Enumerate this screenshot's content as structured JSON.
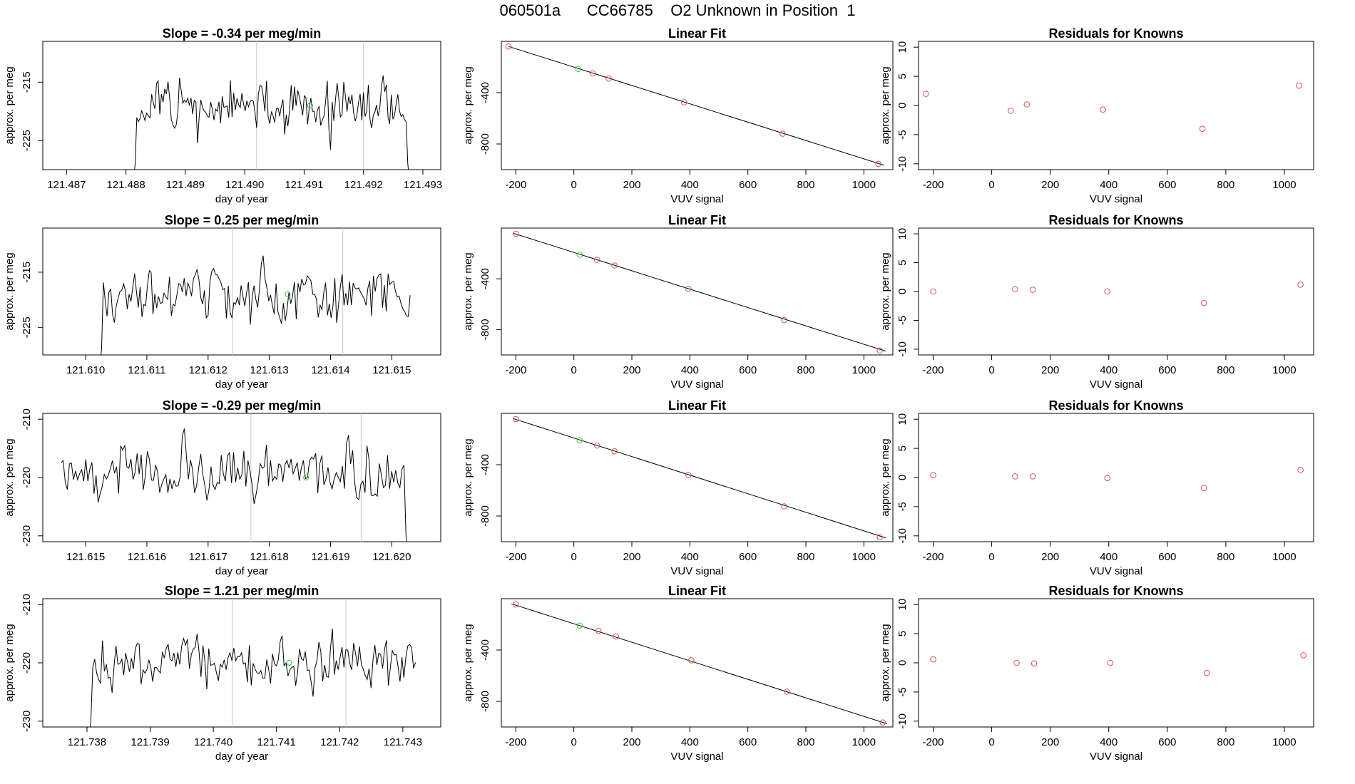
{
  "title": "060501a      CC66785    O2 Unknown in Position  1",
  "colors": {
    "known_point": "#d9534f",
    "unknown_point": "#2ecc40",
    "line": "#000000",
    "marker_line": "#c8c8c8"
  },
  "chart_data": [
    {
      "type": "line",
      "row": 1,
      "panel": "time-series",
      "title": "Slope =  -0.34  per meg/min",
      "xlabel": "day of year",
      "ylabel": "approx. per meg",
      "xlim": [
        121.4866,
        121.4933
      ],
      "ylim": [
        -230,
        -208
      ],
      "xticks": [
        "121.487",
        "121.488",
        "121.489",
        "121.490",
        "121.491",
        "121.492",
        "121.493"
      ],
      "xtick_values": [
        121.487,
        121.488,
        121.489,
        121.49,
        121.491,
        121.492,
        121.493
      ],
      "yticks": [
        "-215",
        "-225"
      ],
      "ytick_values": [
        -215,
        -225
      ],
      "xrange": [
        121.4881,
        121.4928
      ],
      "start_drop": true,
      "end_drop": true,
      "mean": -219.5,
      "sd": 2.2,
      "seed": 11,
      "vlines": [
        121.4902,
        121.492
      ],
      "unknown_point": {
        "x": 121.4911,
        "y": -219
      }
    },
    {
      "type": "scatter",
      "row": 1,
      "panel": "linear-fit",
      "title": "Linear Fit",
      "xlabel": "VUV signal",
      "ylabel": "approx. per meg",
      "xlim": [
        -250,
        1100
      ],
      "ylim": [
        -1000,
        0
      ],
      "xticks": [
        "-200",
        "0",
        "200",
        "400",
        "600",
        "800",
        "1000"
      ],
      "xtick_values": [
        -200,
        0,
        200,
        400,
        600,
        800,
        1000
      ],
      "yticks": [
        "-400",
        "-800"
      ],
      "ytick_values": [
        -400,
        -800
      ],
      "fit_line": {
        "x": [
          -225,
          1070
        ],
        "y": [
          -40,
          -966
        ]
      },
      "known_points": {
        "x": [
          -225,
          65,
          120,
          380,
          720,
          1050
        ],
        "y": [
          -40,
          -250,
          -290,
          -475,
          -720,
          -955
        ]
      },
      "unknown_point": {
        "x": 15,
        "y": -215
      }
    },
    {
      "type": "scatter",
      "row": 1,
      "panel": "residuals",
      "title": "Residuals for Knowns",
      "xlabel": "VUV signal",
      "ylabel": "approx. per meg",
      "xlim": [
        -250,
        1100
      ],
      "ylim": [
        -11,
        11
      ],
      "xticks": [
        "-200",
        "0",
        "200",
        "400",
        "600",
        "800",
        "1000"
      ],
      "xtick_values": [
        -200,
        0,
        200,
        400,
        600,
        800,
        1000
      ],
      "yticks": [
        "-10",
        "-5",
        "0",
        "5",
        "10"
      ],
      "ytick_values": [
        -10,
        -5,
        0,
        5,
        10
      ],
      "points": {
        "x": [
          -225,
          65,
          120,
          380,
          720,
          1050
        ],
        "y": [
          2.0,
          -0.9,
          0.2,
          -0.7,
          -4.0,
          3.4
        ]
      }
    },
    {
      "type": "line",
      "row": 2,
      "panel": "time-series",
      "title": "Slope =  0.25  per meg/min",
      "xlabel": "day of year",
      "ylabel": "approx. per meg",
      "xlim": [
        121.6093,
        121.6158
      ],
      "ylim": [
        -230,
        -207
      ],
      "xticks": [
        "121.610",
        "121.611",
        "121.612",
        "121.613",
        "121.614",
        "121.615"
      ],
      "xtick_values": [
        121.61,
        121.611,
        121.612,
        121.613,
        121.614,
        121.615
      ],
      "yticks": [
        "-215",
        "-225"
      ],
      "ytick_values": [
        -215,
        -225
      ],
      "xrange": [
        121.6102,
        121.6153
      ],
      "start_drop": true,
      "end_drop": false,
      "mean": -219.5,
      "sd": 2.3,
      "seed": 23,
      "vlines": [
        121.6124,
        121.6142
      ],
      "unknown_point": {
        "x": 121.6133,
        "y": -219
      }
    },
    {
      "type": "scatter",
      "row": 2,
      "panel": "linear-fit",
      "title": "Linear Fit",
      "xlabel": "VUV signal",
      "ylabel": "approx. per meg",
      "xlim": [
        -250,
        1100
      ],
      "ylim": [
        -1000,
        0
      ],
      "xticks": [
        "-200",
        "0",
        "200",
        "400",
        "600",
        "800",
        "1000"
      ],
      "xtick_values": [
        -200,
        0,
        200,
        400,
        600,
        800,
        1000
      ],
      "yticks": [
        "-400",
        "-800"
      ],
      "ytick_values": [
        -400,
        -800
      ],
      "fit_line": {
        "x": [
          -210,
          1075
        ],
        "y": [
          -40,
          -970
        ]
      },
      "known_points": {
        "x": [
          -200,
          80,
          140,
          395,
          725,
          1055
        ],
        "y": [
          -45,
          -250,
          -295,
          -480,
          -725,
          -965
        ]
      },
      "unknown_point": {
        "x": 20,
        "y": -210
      }
    },
    {
      "type": "scatter",
      "row": 2,
      "panel": "residuals",
      "title": "Residuals for Knowns",
      "xlabel": "VUV signal",
      "ylabel": "approx. per meg",
      "xlim": [
        -250,
        1100
      ],
      "ylim": [
        -11,
        11
      ],
      "xticks": [
        "-200",
        "0",
        "200",
        "400",
        "600",
        "800",
        "1000"
      ],
      "xtick_values": [
        -200,
        0,
        200,
        400,
        600,
        800,
        1000
      ],
      "yticks": [
        "-10",
        "-5",
        "0",
        "5",
        "10"
      ],
      "ytick_values": [
        -10,
        -5,
        0,
        5,
        10
      ],
      "points": {
        "x": [
          -200,
          80,
          140,
          395,
          725,
          1055
        ],
        "y": [
          0.0,
          0.4,
          0.3,
          0.0,
          -2.0,
          1.2
        ]
      }
    },
    {
      "type": "line",
      "row": 3,
      "panel": "time-series",
      "title": "Slope =  -0.29  per meg/min",
      "xlabel": "day of year",
      "ylabel": "approx. per meg",
      "xlim": [
        121.6143,
        121.6208
      ],
      "ylim": [
        -231,
        -209
      ],
      "xticks": [
        "121.615",
        "121.616",
        "121.617",
        "121.618",
        "121.619",
        "121.620"
      ],
      "xtick_values": [
        121.615,
        121.616,
        121.617,
        121.618,
        121.619,
        121.62
      ],
      "yticks": [
        "-210",
        "-220",
        "-230"
      ],
      "ytick_values": [
        -210,
        -220,
        -230
      ],
      "xrange": [
        121.6146,
        121.6203
      ],
      "start_drop": false,
      "end_drop": true,
      "mean": -219,
      "sd": 2.4,
      "seed": 37,
      "vlines": [
        121.6177,
        121.6195
      ],
      "unknown_point": {
        "x": 121.6186,
        "y": -220
      }
    },
    {
      "type": "scatter",
      "row": 3,
      "panel": "linear-fit",
      "title": "Linear Fit",
      "xlabel": "VUV signal",
      "ylabel": "approx. per meg",
      "xlim": [
        -250,
        1100
      ],
      "ylim": [
        -1000,
        0
      ],
      "xticks": [
        "-200",
        "0",
        "200",
        "400",
        "600",
        "800",
        "1000"
      ],
      "xtick_values": [
        -200,
        0,
        200,
        400,
        600,
        800,
        1000
      ],
      "yticks": [
        "-400",
        "-800"
      ],
      "ytick_values": [
        -400,
        -800
      ],
      "fit_line": {
        "x": [
          -210,
          1075
        ],
        "y": [
          -40,
          -970
        ]
      },
      "known_points": {
        "x": [
          -200,
          80,
          140,
          395,
          725,
          1055
        ],
        "y": [
          -45,
          -250,
          -295,
          -480,
          -725,
          -965
        ]
      },
      "unknown_point": {
        "x": 20,
        "y": -210
      }
    },
    {
      "type": "scatter",
      "row": 3,
      "panel": "residuals",
      "title": "Residuals for Knowns",
      "xlabel": "VUV signal",
      "ylabel": "approx. per meg",
      "xlim": [
        -250,
        1100
      ],
      "ylim": [
        -11,
        11
      ],
      "xticks": [
        "-200",
        "0",
        "200",
        "400",
        "600",
        "800",
        "1000"
      ],
      "xtick_values": [
        -200,
        0,
        200,
        400,
        600,
        800,
        1000
      ],
      "yticks": [
        "-10",
        "-5",
        "0",
        "5",
        "10"
      ],
      "ytick_values": [
        -10,
        -5,
        0,
        5,
        10
      ],
      "points": {
        "x": [
          -200,
          80,
          140,
          395,
          725,
          1055
        ],
        "y": [
          0.4,
          0.2,
          0.2,
          -0.1,
          -1.8,
          1.3
        ]
      }
    },
    {
      "type": "line",
      "row": 4,
      "panel": "time-series",
      "title": "Slope =  1.21  per meg/min",
      "xlabel": "day of year",
      "ylabel": "approx. per meg",
      "xlim": [
        121.7373,
        121.7436
      ],
      "ylim": [
        -231,
        -209
      ],
      "xticks": [
        "121.738",
        "121.739",
        "121.740",
        "121.741",
        "121.742",
        "121.743"
      ],
      "xtick_values": [
        121.738,
        121.739,
        121.74,
        121.741,
        121.742,
        121.743
      ],
      "yticks": [
        "-210",
        "-220",
        "-230"
      ],
      "ytick_values": [
        -210,
        -220,
        -230
      ],
      "xrange": [
        121.738,
        121.7432
      ],
      "start_drop": true,
      "end_drop": false,
      "mean": -220,
      "sd": 2.2,
      "seed": 53,
      "vlines": [
        121.7403,
        121.7421
      ],
      "unknown_point": {
        "x": 121.7412,
        "y": -220
      }
    },
    {
      "type": "scatter",
      "row": 4,
      "panel": "linear-fit",
      "title": "Linear Fit",
      "xlabel": "VUV signal",
      "ylabel": "approx. per meg",
      "xlim": [
        -250,
        1100
      ],
      "ylim": [
        -1000,
        0
      ],
      "xticks": [
        "-200",
        "0",
        "200",
        "400",
        "600",
        "800",
        "1000"
      ],
      "xtick_values": [
        -200,
        0,
        200,
        400,
        600,
        800,
        1000
      ],
      "yticks": [
        "-400",
        "-800"
      ],
      "ytick_values": [
        -400,
        -800
      ],
      "fit_line": {
        "x": [
          -215,
          1080
        ],
        "y": [
          -40,
          -975
        ]
      },
      "known_points": {
        "x": [
          -200,
          85,
          145,
          405,
          735,
          1065
        ],
        "y": [
          -45,
          -250,
          -295,
          -480,
          -725,
          -965
        ]
      },
      "unknown_point": {
        "x": 20,
        "y": -210
      }
    },
    {
      "type": "scatter",
      "row": 4,
      "panel": "residuals",
      "title": "Residuals for Knowns",
      "xlabel": "VUV signal",
      "ylabel": "approx. per meg",
      "xlim": [
        -250,
        1100
      ],
      "ylim": [
        -11,
        11
      ],
      "xticks": [
        "-200",
        "0",
        "200",
        "400",
        "600",
        "800",
        "1000"
      ],
      "xtick_values": [
        -200,
        0,
        200,
        400,
        600,
        800,
        1000
      ],
      "yticks": [
        "-10",
        "-5",
        "0",
        "5",
        "10"
      ],
      "ytick_values": [
        -10,
        -5,
        0,
        5,
        10
      ],
      "points": {
        "x": [
          -200,
          85,
          145,
          405,
          735,
          1065
        ],
        "y": [
          0.6,
          0.0,
          -0.1,
          0.0,
          -1.7,
          1.3
        ]
      }
    }
  ]
}
